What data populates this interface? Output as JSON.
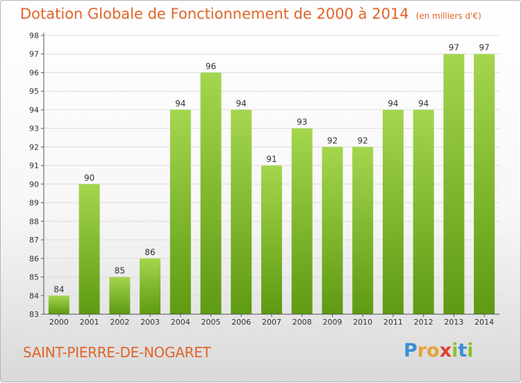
{
  "title": "Dotation Globale de Fonctionnement de 2000 à 2014",
  "subtitle": "(en milliers d'€)",
  "commune": "SAINT-PIERRE-DE-NOGARET",
  "logo": {
    "letters": [
      "P",
      "r",
      "o",
      "x",
      "i",
      "t",
      "i"
    ],
    "colors": [
      "#3b8fd6",
      "#e8a23a",
      "#e8a23a",
      "#e0412e",
      "#8cbf2e",
      "#3b8fd6",
      "#8cbf2e"
    ]
  },
  "colors": {
    "bar_top": "#a4d64e",
    "bar_bottom": "#5e9a12",
    "grid": "#dddddd",
    "axis": "#555555",
    "text": "#333333",
    "accent": "#e0652a"
  },
  "chart_data": {
    "type": "bar",
    "categories": [
      "2000",
      "2001",
      "2002",
      "2003",
      "2004",
      "2005",
      "2006",
      "2007",
      "2008",
      "2009",
      "2010",
      "2011",
      "2012",
      "2013",
      "2014"
    ],
    "values": [
      84,
      90,
      85,
      86,
      94,
      96,
      94,
      91,
      93,
      92,
      92,
      94,
      94,
      97,
      97
    ],
    "data_labels": [
      "84",
      "90",
      "85",
      "86",
      "94",
      "96",
      "94",
      "91",
      "93",
      "92",
      "92",
      "94",
      "94",
      "97",
      "97"
    ],
    "yticks": [
      "83",
      "84",
      "85",
      "86",
      "87",
      "88",
      "89",
      "90",
      "91",
      "92",
      "93",
      "94",
      "95",
      "96",
      "97",
      "98"
    ],
    "ylim": [
      83,
      98
    ],
    "grid": true,
    "legend": "none"
  }
}
